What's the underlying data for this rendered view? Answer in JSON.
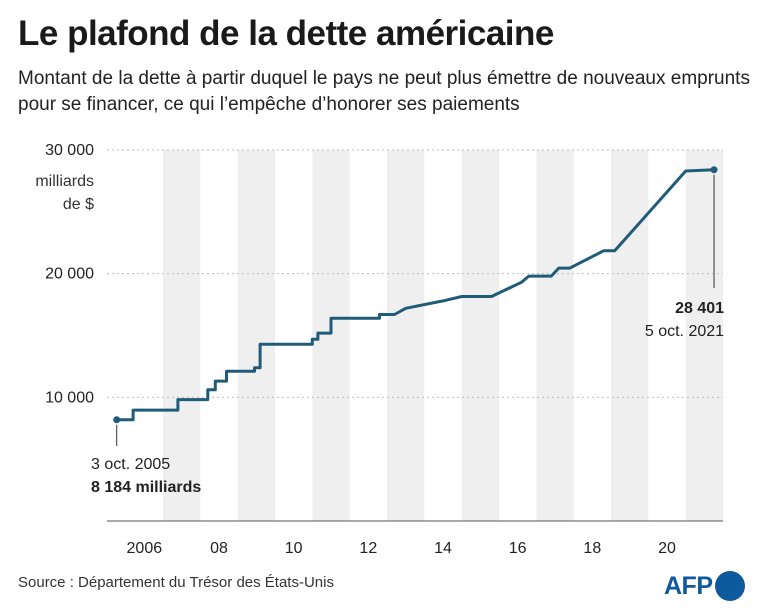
{
  "header": {
    "title": "Le plafond de la dette américaine",
    "subtitle": "Montant de la dette à partir duquel le pays ne peut plus émettre de nouveaux emprunts pour se financer, ce qui l’empêche d’honorer ses paiements"
  },
  "chart_data": {
    "type": "line",
    "title": "Le plafond de la dette américaine",
    "ylabel": "milliards de $",
    "ylabel_lines": [
      "milliards",
      "de $"
    ],
    "xlim": [
      2005.5,
      2022.0
    ],
    "ylim": [
      0,
      30000
    ],
    "grid": "alternating vertical year bands",
    "y_ticks": [
      {
        "value": 10000,
        "label": "10 000"
      },
      {
        "value": 20000,
        "label": "20 000"
      },
      {
        "value": 30000,
        "label": "30 000"
      }
    ],
    "x_ticks": [
      {
        "value": 2006,
        "label": "2006"
      },
      {
        "value": 2008,
        "label": "08"
      },
      {
        "value": 2010,
        "label": "10"
      },
      {
        "value": 2012,
        "label": "12"
      },
      {
        "value": 2014,
        "label": "14"
      },
      {
        "value": 2016,
        "label": "16"
      },
      {
        "value": 2018,
        "label": "18"
      },
      {
        "value": 2020,
        "label": "20"
      }
    ],
    "series": [
      {
        "color": "#1f5c79",
        "points": [
          [
            2005.76,
            8184
          ],
          [
            2006.2,
            8184
          ],
          [
            2006.2,
            8965
          ],
          [
            2007.4,
            8965
          ],
          [
            2007.4,
            9815
          ],
          [
            2008.2,
            9815
          ],
          [
            2008.2,
            10615
          ],
          [
            2008.4,
            10615
          ],
          [
            2008.4,
            11315
          ],
          [
            2008.7,
            11315
          ],
          [
            2008.7,
            12104
          ],
          [
            2009.45,
            12104
          ],
          [
            2009.45,
            12394
          ],
          [
            2009.6,
            12394
          ],
          [
            2009.6,
            14294
          ],
          [
            2011.0,
            14294
          ],
          [
            2011.0,
            14694
          ],
          [
            2011.15,
            14694
          ],
          [
            2011.15,
            15194
          ],
          [
            2011.5,
            15194
          ],
          [
            2011.5,
            16394
          ],
          [
            2012.8,
            16394
          ],
          [
            2012.8,
            16700
          ],
          [
            2013.2,
            16700
          ],
          [
            2013.5,
            17200
          ],
          [
            2014.5,
            17800
          ],
          [
            2015.0,
            18150
          ],
          [
            2015.8,
            18150
          ],
          [
            2016.6,
            19300
          ],
          [
            2016.8,
            19800
          ],
          [
            2017.4,
            19800
          ],
          [
            2017.6,
            20450
          ],
          [
            2017.9,
            20450
          ],
          [
            2018.8,
            21850
          ],
          [
            2019.1,
            21850
          ],
          [
            2021.0,
            28300
          ],
          [
            2021.76,
            28401
          ]
        ],
        "start": {
          "date": "3 oct. 2005",
          "value": 8184
        },
        "end": {
          "date": "5 oct. 2021",
          "value": 28401
        }
      }
    ],
    "annotations": {
      "start_date": "3 oct. 2005",
      "start_value": "8 184 milliards",
      "end_value": "28 401",
      "end_date": "5 oct. 2021"
    }
  },
  "footer": {
    "source": "Source : Département du Trésor des États-Unis",
    "logo": "AFP"
  },
  "colors": {
    "line": "#1f5c79",
    "band": "#efefef",
    "logo": "#0f5a9c"
  }
}
